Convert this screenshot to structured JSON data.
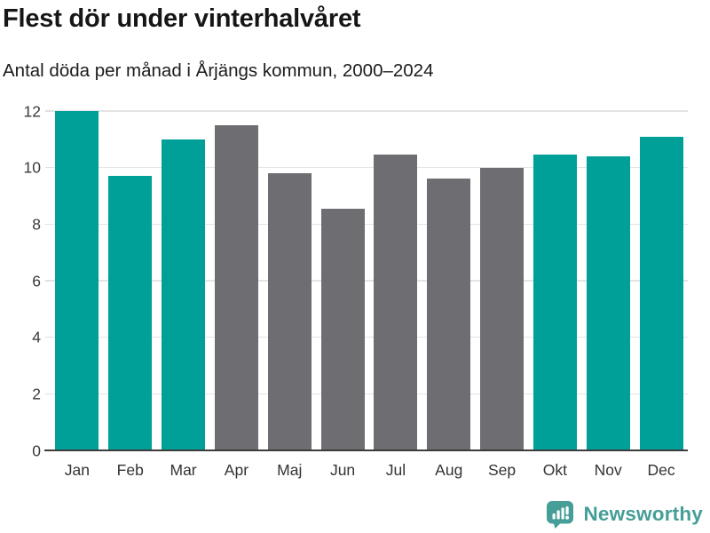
{
  "page": {
    "background": "#ffffff"
  },
  "chart_data": {
    "type": "bar",
    "title": "Flest dör under vinterhalvåret",
    "subtitle": "Antal döda per månad i Årjängs kommun, 2000–2024",
    "categories": [
      "Jan",
      "Feb",
      "Mar",
      "Apr",
      "Maj",
      "Jun",
      "Jul",
      "Aug",
      "Sep",
      "Okt",
      "Nov",
      "Dec"
    ],
    "values": [
      12.0,
      9.7,
      11.0,
      11.5,
      9.8,
      8.55,
      10.45,
      9.6,
      10.0,
      10.45,
      10.4,
      11.1
    ],
    "bar_colors": [
      "teal",
      "teal",
      "teal",
      "gray",
      "gray",
      "gray",
      "gray",
      "gray",
      "gray",
      "teal",
      "teal",
      "teal"
    ],
    "palette": {
      "teal": "#00a099",
      "gray": "#6d6d72"
    },
    "ylim": [
      0,
      12
    ],
    "yticks": [
      0,
      2,
      4,
      6,
      8,
      10,
      12
    ],
    "grid": true,
    "legend": "none",
    "xlabel": "",
    "ylabel": "",
    "axis_line_color": "#3c3c3c",
    "gridline_color": "#e4e4e4",
    "tick_label_color": "#3a3a3a"
  },
  "footer": {
    "brand": "Newsworthy",
    "brand_color": "#459e97",
    "logo_icon": "newsworthy-bubble-chart-icon"
  }
}
